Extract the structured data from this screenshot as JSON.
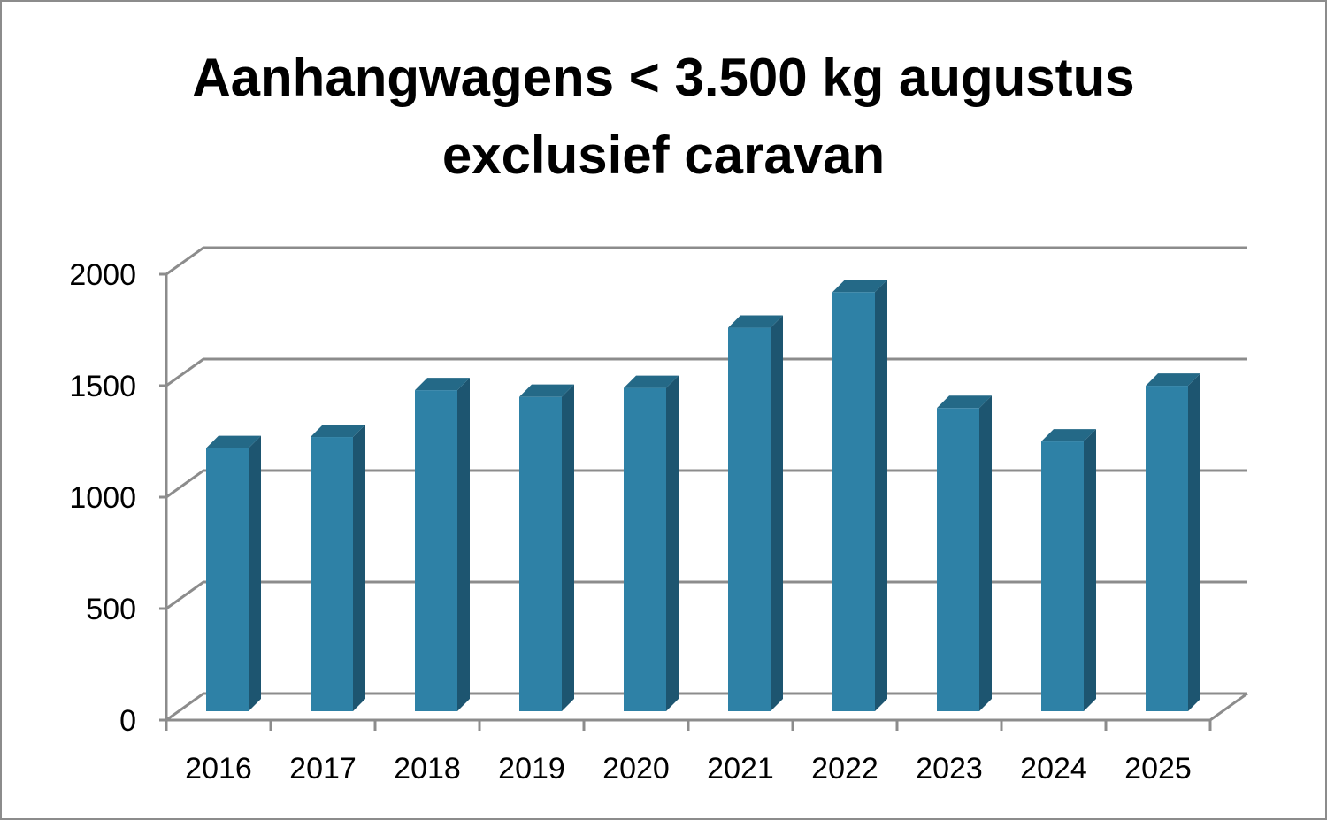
{
  "chart_data": {
    "type": "bar",
    "style": "3d-column",
    "title_lines": [
      "Aanhangwagens < 3.500 kg augustus",
      "exclusief caravan"
    ],
    "categories": [
      "2016",
      "2017",
      "2018",
      "2019",
      "2020",
      "2021",
      "2022",
      "2023",
      "2024",
      "2025"
    ],
    "values": [
      1180,
      1230,
      1440,
      1410,
      1450,
      1720,
      1880,
      1360,
      1210,
      1460
    ],
    "ylim": [
      0,
      2000
    ],
    "yticks": [
      "0",
      "500",
      "1000",
      "1500",
      "2000"
    ],
    "grid": true,
    "legend": "none"
  },
  "colors": {
    "bar_front": "#2e81a6",
    "bar_side": "#1d5570",
    "bar_top": "#246987",
    "grid": "#8c8c8c",
    "frame": "#8c8c8c"
  }
}
